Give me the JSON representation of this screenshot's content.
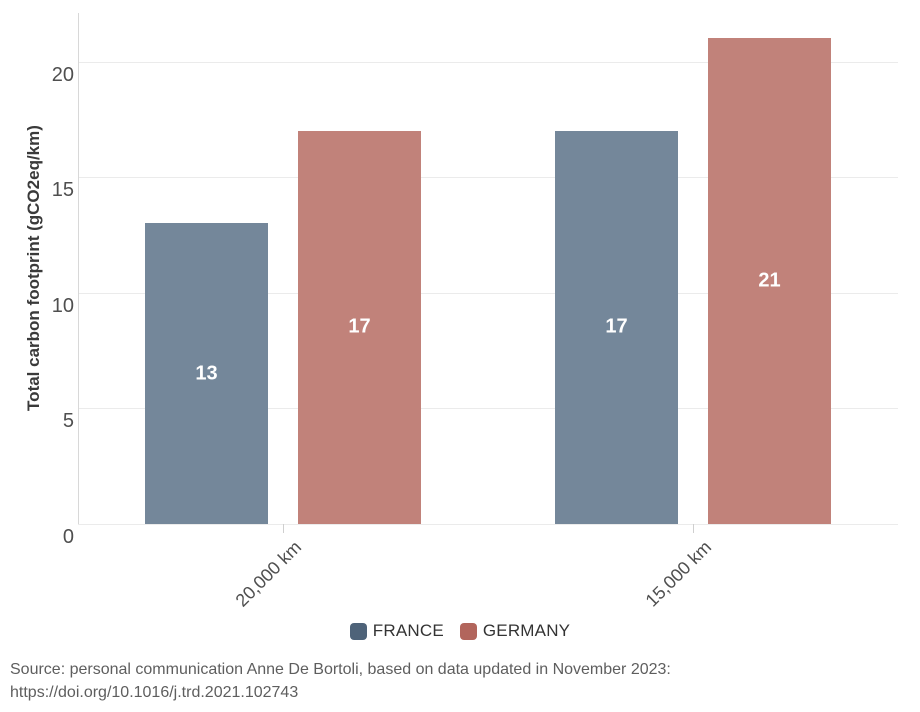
{
  "chart_data": {
    "type": "bar",
    "title": "",
    "xlabel": "",
    "ylabel": "Total carbon footprint (gCO2eq/km)",
    "categories": [
      "20,000 km",
      "15,000 km"
    ],
    "series": [
      {
        "name": "FRANCE",
        "color": "#4E6379",
        "bar_color": "#74879A",
        "values": [
          13,
          17
        ],
        "data_labels": [
          "13",
          "17"
        ]
      },
      {
        "name": "GERMANY",
        "color": "#B2655C",
        "bar_color": "#C1827A",
        "values": [
          17,
          21
        ],
        "data_labels": [
          "17",
          "21"
        ]
      }
    ],
    "yticks": [
      0,
      5,
      10,
      15,
      20
    ],
    "ylim": [
      0,
      22.1
    ],
    "grid": "horizontal",
    "legend_position": "bottom"
  },
  "source": {
    "line1": "Source: personal communication Anne De Bortoli, based on data updated in November 2023:",
    "line2": "https://doi.org/10.1016/j.trd.2021.102743"
  },
  "colors": {
    "background": "#ffffff",
    "gridline": "#ebebeb",
    "axis_line": "#d8d8d8",
    "tick_label": "#4f4f4f",
    "axis_title": "#3a3a3a",
    "bar_value_label": "#ffffff",
    "source_text": "#5e5e5e"
  }
}
